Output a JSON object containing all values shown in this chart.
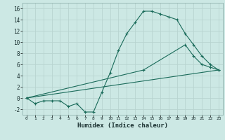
{
  "xlabel": "Humidex (Indice chaleur)",
  "bg_color": "#cce8e4",
  "grid_color": "#b8d4d0",
  "line_color": "#1a6b5a",
  "xlim": [
    -0.5,
    23.5
  ],
  "ylim": [
    -3,
    17
  ],
  "xticks": [
    0,
    1,
    2,
    3,
    4,
    5,
    6,
    7,
    8,
    9,
    10,
    11,
    12,
    13,
    14,
    15,
    16,
    17,
    18,
    19,
    20,
    21,
    22,
    23
  ],
  "yticks": [
    -2,
    0,
    2,
    4,
    6,
    8,
    10,
    12,
    14,
    16
  ],
  "line1_x": [
    0,
    1,
    2,
    3,
    4,
    5,
    6,
    7,
    8,
    9,
    10,
    11,
    12,
    13,
    14,
    15,
    16,
    17,
    18,
    19,
    20,
    21,
    22,
    23
  ],
  "line1_y": [
    0,
    -1,
    -0.5,
    -0.5,
    -0.5,
    -1.5,
    -1,
    -2.5,
    -2.5,
    1,
    4.5,
    8.5,
    11.5,
    13.5,
    15.5,
    15.5,
    15,
    14.5,
    14,
    11.5,
    9.5,
    7.5,
    6,
    5
  ],
  "line2_x": [
    0,
    23
  ],
  "line2_y": [
    0,
    5
  ],
  "line3_x": [
    0,
    14,
    19,
    20,
    21,
    22,
    23
  ],
  "line3_y": [
    0,
    5,
    9.5,
    7.5,
    6,
    5.5,
    5
  ]
}
